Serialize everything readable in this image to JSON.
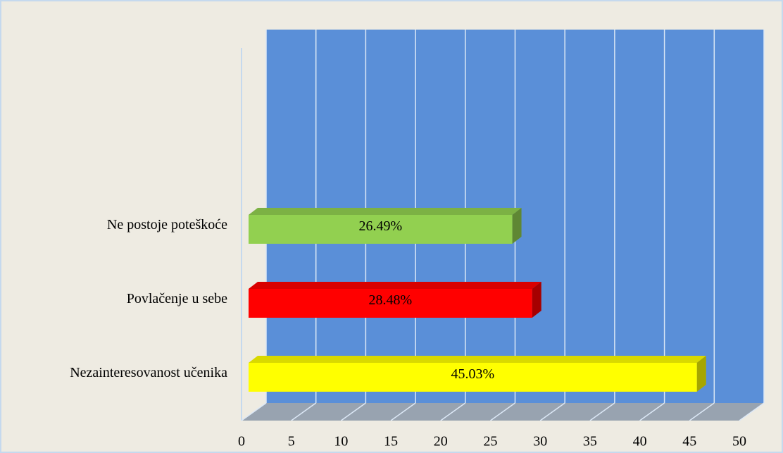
{
  "chart_data": {
    "type": "bar3d_horizontal",
    "categories": [
      "Ne postoje poteškoće",
      "Povlačenje u sebe",
      "Nezainteresovanost učenika"
    ],
    "values": [
      26.49,
      28.48,
      45.03
    ],
    "value_labels": [
      "26.49%",
      "28.48%",
      "45.03%"
    ],
    "colors": [
      "#92d050",
      "#ff0000",
      "#ffff00"
    ],
    "xlim": [
      0,
      50
    ],
    "xticks": [
      0,
      5,
      10,
      15,
      20,
      25,
      30,
      35,
      40,
      45,
      50
    ],
    "grid": true
  }
}
